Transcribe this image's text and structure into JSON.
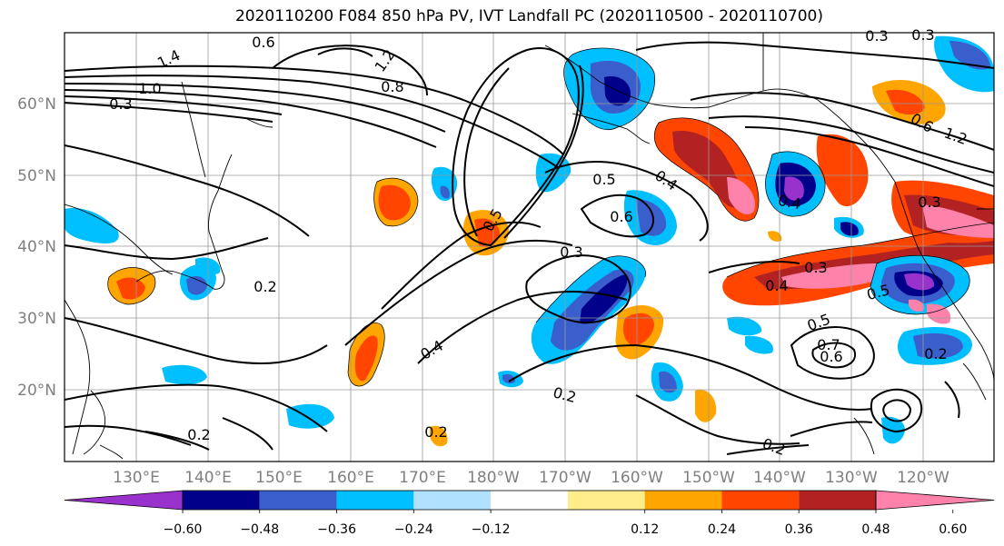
{
  "title": "2020110200 F084 850 hPa PV, IVT Landfall PC (2020110500 - 2020110700)",
  "map": {
    "lat_labels": [
      "60°N",
      "50°N",
      "40°N",
      "30°N",
      "20°N"
    ],
    "lon_labels": [
      "130°E",
      "140°E",
      "150°E",
      "160°E",
      "170°E",
      "180°W",
      "170°W",
      "160°W",
      "150°W",
      "140°W",
      "130°W",
      "120°W"
    ],
    "contour_labels": [
      {
        "text": "1.4"
      },
      {
        "text": "1.0"
      },
      {
        "text": "0.3"
      },
      {
        "text": "1.2"
      },
      {
        "text": "0.8"
      },
      {
        "text": "0.6"
      },
      {
        "text": "0.3"
      },
      {
        "text": "0.5"
      },
      {
        "text": "0.6"
      },
      {
        "text": "0.3"
      },
      {
        "text": "0.2"
      },
      {
        "text": "0.4"
      },
      {
        "text": "0.2"
      },
      {
        "text": "0.2"
      },
      {
        "text": "0.4"
      },
      {
        "text": "0.5"
      },
      {
        "text": "0.4"
      },
      {
        "text": "0.3"
      },
      {
        "text": "0.5"
      },
      {
        "text": "0.6"
      },
      {
        "text": "0.2"
      },
      {
        "text": "0.2"
      },
      {
        "text": "0.3"
      },
      {
        "text": "0.4"
      },
      {
        "text": "0.2"
      },
      {
        "text": "0.7"
      },
      {
        "text": "0.6"
      },
      {
        "text": "1.2"
      },
      {
        "text": "0.3"
      },
      {
        "text": "0.5"
      }
    ]
  },
  "colorbar": {
    "colors": [
      "#9932cc",
      "#00008b",
      "#3a5fcd",
      "#00bfff",
      "#b0e2ff",
      "#ffffff",
      "#ffec8b",
      "#ffa500",
      "#ff4500",
      "#b22222",
      "#ff82ab"
    ],
    "tick_labels": [
      "−0.60",
      "−0.48",
      "−0.36",
      "−0.24",
      "−0.12",
      "0.12",
      "0.24",
      "0.36",
      "0.48",
      "0.60"
    ]
  }
}
